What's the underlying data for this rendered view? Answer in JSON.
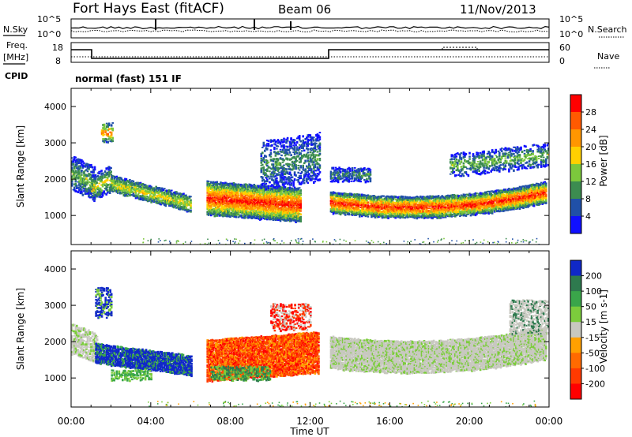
{
  "header": {
    "station": "Fort Hays East (fitACF)",
    "beam": "Beam 06",
    "date": "11/Nov/2013"
  },
  "noise_panel": {
    "left_label": "N.Sky",
    "right_label": "N.Search",
    "left_ticks": [
      "10^5",
      "10^0"
    ],
    "right_ticks": [
      "10^5",
      "10^0"
    ]
  },
  "freq_panel": {
    "left_label_1": "Freq.",
    "left_label_2": "[MHz]",
    "right_label": "Nave",
    "left_ticks": [
      "18",
      "8"
    ],
    "right_ticks": [
      "60",
      "0"
    ]
  },
  "cpid": {
    "label": "CPID",
    "value": "normal (fast) 151 IF"
  },
  "x_axis": {
    "label": "Time UT",
    "ticks": [
      "00:00",
      "04:00",
      "08:00",
      "12:00",
      "16:00",
      "20:00",
      "00:00"
    ]
  },
  "chart_data": [
    {
      "type": "heatmap",
      "name": "power",
      "ylabel": "Slant Range [km]",
      "yticks": [
        1000,
        2000,
        3000,
        4000
      ],
      "xticks": [
        "00:00",
        "04:00",
        "08:00",
        "12:00",
        "16:00",
        "20:00",
        "00:00"
      ],
      "colorbar": {
        "label": "Power [dB]",
        "ticks": [
          "28",
          "24",
          "20",
          "16",
          "12",
          "8",
          "4"
        ],
        "colors": [
          "#ff0000",
          "#ff5a00",
          "#ff9600",
          "#ffd000",
          "#7cc83c",
          "#3c8c50",
          "#2050a8",
          "#1010ff"
        ]
      },
      "xlim": [
        "00:00",
        "24:00"
      ],
      "ylim": [
        200,
        4500
      ]
    },
    {
      "type": "heatmap",
      "name": "velocity",
      "ylabel": "Slant Range [km]",
      "yticks": [
        1000,
        2000,
        3000,
        4000
      ],
      "xticks": [
        "00:00",
        "04:00",
        "08:00",
        "12:00",
        "16:00",
        "20:00",
        "00:00"
      ],
      "colorbar": {
        "label": "Velocity [m s-1]",
        "ticks": [
          "200",
          "100",
          "50",
          "15",
          "-15",
          "-50",
          "-100",
          "-200"
        ],
        "colors": [
          "#1028c8",
          "#2e7a4e",
          "#3aa64a",
          "#7ccc3c",
          "#c8c8c0",
          "#ffa000",
          "#ff6a00",
          "#ff3a00",
          "#ff0000"
        ]
      },
      "xlim": [
        "00:00",
        "24:00"
      ],
      "ylim": [
        200,
        4500
      ]
    }
  ]
}
